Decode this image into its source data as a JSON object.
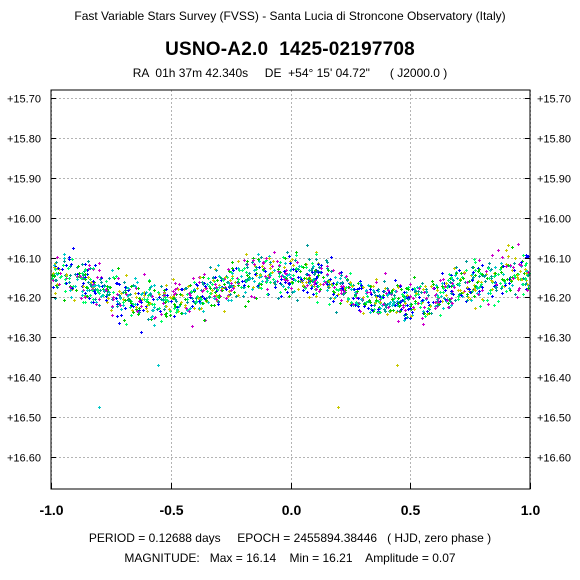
{
  "header": {
    "survey": "Fast Variable Stars Survey (FVSS) - Santa Lucia di Stroncone Observatory (Italy)",
    "star_name": "USNO-A2.0  1425-02197708",
    "coords": "RA  01h 37m 42.340s     DE  +54° 15' 04.72\"      ( J2000.0 )"
  },
  "footer": {
    "line1": "PERIOD = 0.12688 days     EPOCH = 2455894.38446   ( HJD, zero phase )",
    "line2": "MAGNITUDE:   Max = 16.14    Min = 16.21    Amplitude = 0.07"
  },
  "chart_data": {
    "type": "scatter",
    "xlim": [
      -1.0,
      1.0
    ],
    "ylim": [
      16.68,
      15.68
    ],
    "y_inverted": true,
    "x_ticks": [
      -1.0,
      -0.5,
      0.0,
      0.5,
      1.0
    ],
    "x_tick_labels": [
      "-1.0",
      "-0.5",
      "0.0",
      "0.5",
      "1.0"
    ],
    "y_ticks": [
      15.7,
      15.8,
      15.9,
      16.0,
      16.1,
      16.2,
      16.3,
      16.4,
      16.5,
      16.6
    ],
    "y_tick_labels": [
      "+15.70",
      "+15.80",
      "+15.90",
      "+16.00",
      "+16.10",
      "+16.20",
      "+16.30",
      "+16.40",
      "+16.50",
      "+16.60"
    ],
    "grid": true,
    "colors": [
      "#00cc00",
      "#00c8c8",
      "#0000ff",
      "#cc00cc",
      "#c8c800",
      "#00ff66",
      "#009999"
    ],
    "light_curve": {
      "period_days": 0.12688,
      "mag_max": 16.14,
      "mag_min": 16.21,
      "amplitude": 0.07,
      "min_phases": [
        -0.55,
        0.45
      ],
      "scatter_sigma": 0.035,
      "points_per_unit_phase": 800
    },
    "outliers": [
      {
        "x": -0.8,
        "y": 16.475
      },
      {
        "x": 0.2,
        "y": 16.475
      },
      {
        "x": -0.555,
        "y": 16.37
      },
      {
        "x": 0.445,
        "y": 16.37
      }
    ]
  }
}
